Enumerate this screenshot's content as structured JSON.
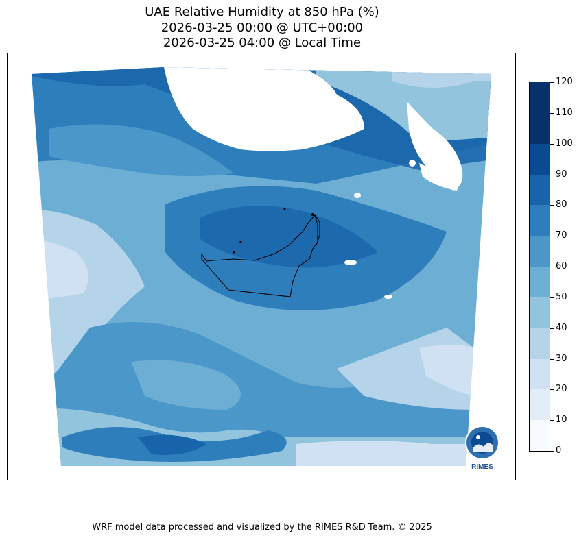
{
  "header": {
    "title_line1": "UAE Relative Humidity at 850 hPa (%)",
    "title_line2": "2026-03-25 00:00 @ UTC+00:00",
    "title_line3": "2026-03-25 04:00 @ Local Time"
  },
  "colorbar": {
    "min": 0,
    "max": 120,
    "levels": [
      "0",
      "10",
      "20",
      "30",
      "40",
      "50",
      "60",
      "70",
      "80",
      "90",
      "100",
      "110",
      "120"
    ],
    "colors": [
      "#f7fbff",
      "#e2edf8",
      "#cfe1f2",
      "#b5d4e9",
      "#93c4de",
      "#6daed5",
      "#4b97c9",
      "#2f7ebc",
      "#1864aa",
      "#0a4a90",
      "#08306b",
      "#08306b"
    ]
  },
  "logo": {
    "text": "RIMES"
  },
  "footer": {
    "text": "WRF model data processed and visualized by the RIMES R&D Team. © 2025"
  }
}
